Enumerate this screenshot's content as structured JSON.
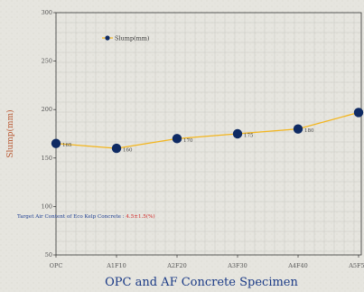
{
  "chart_data": {
    "type": "line",
    "categories": [
      "OPC",
      "A1F10",
      "A2F20",
      "A3F30",
      "A4F40",
      "A5F50"
    ],
    "series": [
      {
        "name": "Slump(mm)",
        "values": [
          165,
          160,
          170,
          175,
          180,
          197
        ]
      }
    ],
    "data_labels": [
      "165",
      "160",
      "170",
      "175",
      "180",
      ""
    ],
    "xlabel": "OPC and AF Concrete Specimen",
    "ylabel": "Slump(mm)",
    "ylim": [
      50,
      300
    ],
    "yticks": [
      50,
      100,
      150,
      200,
      250,
      300
    ],
    "grid": true,
    "legend": "top-left",
    "colors": {
      "line": "#f3b51c",
      "marker": "#0e2a63",
      "axis_label": "#b8562f",
      "xlabel": "#1a3a86",
      "tick": "#555555"
    },
    "annotation": {
      "prefix": "Target Air Content of Eco Kelp Concrete : ",
      "value": "4.5±1.5(%)",
      "prefix_color": "#1d3e92",
      "value_color": "#d02525"
    }
  }
}
